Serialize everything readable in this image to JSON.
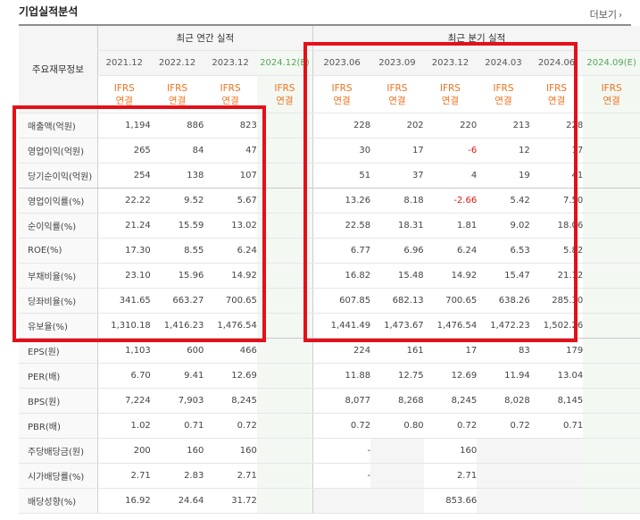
{
  "header": {
    "title": "기업실적분석",
    "more_label": "더보기",
    "more_icon": "chevron-right-icon"
  },
  "table": {
    "row_header": "주요재무정보",
    "annual_group": "최근 연간 실적",
    "quarter_group": "최근 분기 실적",
    "annual_periods": [
      "2021.12",
      "2022.12",
      "2023.12",
      "2024.12(E)"
    ],
    "quarter_periods": [
      "2023.06",
      "2023.09",
      "2023.12",
      "2024.03",
      "2024.06",
      "2024.09(E)"
    ],
    "basis_top": "IFRS",
    "basis_bottom": "연결",
    "rows": [
      {
        "label": "매출액(억원)",
        "annual": [
          "1,194",
          "886",
          "823",
          ""
        ],
        "quarter": [
          "228",
          "202",
          "220",
          "213",
          "228",
          ""
        ]
      },
      {
        "label": "영업이익(억원)",
        "annual": [
          "265",
          "84",
          "47",
          ""
        ],
        "quarter": [
          "30",
          "17",
          "-6",
          "12",
          "17",
          ""
        ]
      },
      {
        "label": "당기순이익(억원)",
        "annual": [
          "254",
          "138",
          "107",
          ""
        ],
        "quarter": [
          "51",
          "37",
          "4",
          "19",
          "41",
          ""
        ]
      },
      {
        "label": "영업이익률(%)",
        "annual": [
          "22.22",
          "9.52",
          "5.67",
          ""
        ],
        "quarter": [
          "13.26",
          "8.18",
          "-2.66",
          "5.42",
          "7.50",
          ""
        ]
      },
      {
        "label": "순이익률(%)",
        "annual": [
          "21.24",
          "15.59",
          "13.02",
          ""
        ],
        "quarter": [
          "22.58",
          "18.31",
          "1.81",
          "9.02",
          "18.06",
          ""
        ]
      },
      {
        "label": "ROE(%)",
        "annual": [
          "17.30",
          "8.55",
          "6.24",
          ""
        ],
        "quarter": [
          "6.77",
          "6.96",
          "6.24",
          "6.53",
          "5.82",
          ""
        ]
      },
      {
        "label": "부채비율(%)",
        "annual": [
          "23.10",
          "15.96",
          "14.92",
          ""
        ],
        "quarter": [
          "16.82",
          "15.48",
          "14.92",
          "15.47",
          "21.12",
          ""
        ]
      },
      {
        "label": "당좌비율(%)",
        "annual": [
          "341.65",
          "663.27",
          "700.65",
          ""
        ],
        "quarter": [
          "607.85",
          "682.13",
          "700.65",
          "638.26",
          "285.30",
          ""
        ]
      },
      {
        "label": "유보율(%)",
        "annual": [
          "1,310.18",
          "1,416.23",
          "1,476.54",
          ""
        ],
        "quarter": [
          "1,441.49",
          "1,473.67",
          "1,476.54",
          "1,472.23",
          "1,502.26",
          ""
        ]
      },
      {
        "label": "EPS(원)",
        "annual": [
          "1,103",
          "600",
          "466",
          ""
        ],
        "quarter": [
          "224",
          "161",
          "17",
          "83",
          "179",
          ""
        ]
      },
      {
        "label": "PER(배)",
        "annual": [
          "6.70",
          "9.41",
          "12.69",
          ""
        ],
        "quarter": [
          "11.88",
          "12.75",
          "12.69",
          "11.94",
          "13.04",
          ""
        ]
      },
      {
        "label": "BPS(원)",
        "annual": [
          "7,224",
          "7,903",
          "8,245",
          ""
        ],
        "quarter": [
          "8,077",
          "8,268",
          "8,245",
          "8,028",
          "8,145",
          ""
        ]
      },
      {
        "label": "PBR(배)",
        "annual": [
          "1.02",
          "0.71",
          "0.72",
          ""
        ],
        "quarter": [
          "0.72",
          "0.80",
          "0.72",
          "0.72",
          "0.71",
          ""
        ]
      },
      {
        "label": "주당배당금(원)",
        "annual": [
          "200",
          "160",
          "160",
          ""
        ],
        "quarter": [
          "-",
          "",
          "160",
          "",
          "",
          ""
        ]
      },
      {
        "label": "시가배당률(%)",
        "annual": [
          "2.71",
          "2.83",
          "2.71",
          ""
        ],
        "quarter": [
          "-",
          "",
          "2.71",
          "",
          "",
          ""
        ]
      },
      {
        "label": "배당성향(%)",
        "annual": [
          "16.92",
          "24.64",
          "31.72",
          ""
        ],
        "quarter": [
          "",
          "",
          "853.66",
          "",
          "",
          ""
        ]
      }
    ]
  },
  "colors": {
    "highlight_box": "#e3101a",
    "ifrs_text": "#f07221",
    "estimate_text": "#59a55a",
    "estimate_bg": "#f3f8f3",
    "negative_text": "#e3180b"
  }
}
